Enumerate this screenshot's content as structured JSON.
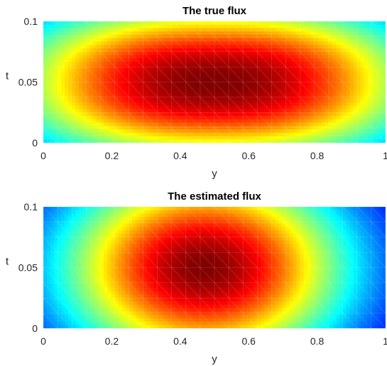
{
  "chart_data": [
    {
      "type": "heatmap",
      "title": "The true flux",
      "xlabel": "y",
      "ylabel": "t",
      "xlim": [
        0,
        1
      ],
      "ylim": [
        0,
        0.1
      ],
      "x_ticks": [
        "0",
        "0.2",
        "0.4",
        "0.6",
        "0.8",
        "1"
      ],
      "y_ticks": [
        "0",
        "0.05",
        "0.1"
      ],
      "colormap": "jet",
      "grid": false,
      "mesh": "triangular",
      "field": {
        "peak_y": 0.5,
        "peak_t": 0.05,
        "peak_value": 1.0,
        "shape": "flat-top ellipse"
      }
    },
    {
      "type": "heatmap",
      "title": "The estimated flux",
      "xlabel": "y",
      "ylabel": "t",
      "xlim": [
        0,
        1
      ],
      "ylim": [
        0,
        0.1
      ],
      "x_ticks": [
        "0",
        "0.2",
        "0.4",
        "0.6",
        "0.8",
        "1"
      ],
      "y_ticks": [
        "0",
        "0.05",
        "0.1"
      ],
      "colormap": "jet",
      "grid": false,
      "mesh": "triangular",
      "field": {
        "peak_y": 0.47,
        "peak_t": 0.05,
        "peak_value": 1.0,
        "shape": "smooth ellipse"
      }
    }
  ]
}
